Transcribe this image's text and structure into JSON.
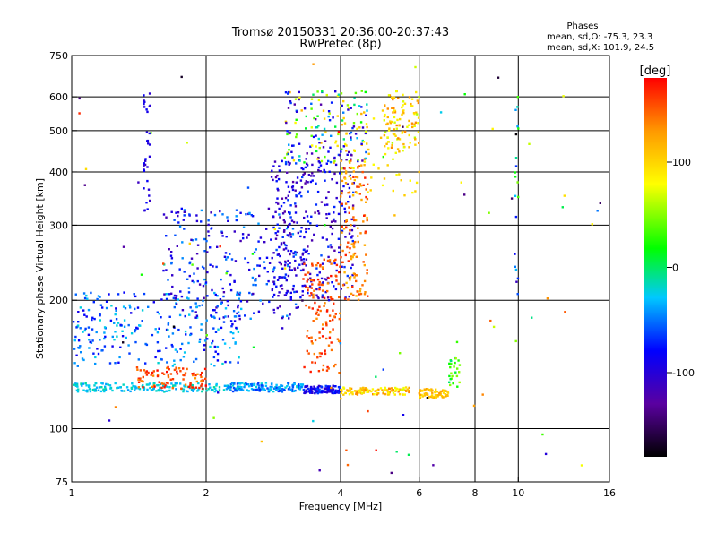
{
  "chart_data": {
    "type": "scatter",
    "title": "Tromsø 20150331 20:36:00-20:37:43",
    "subtitle": "RwPretec (8p)",
    "xlabel": "Frequency [MHz]",
    "ylabel": "Stationary phase Virtual Height [km]",
    "x_scale": "log",
    "y_scale": "log",
    "xlim": [
      1,
      16
    ],
    "ylim": [
      75,
      750
    ],
    "grid": true,
    "x_ticks": [
      1,
      2,
      4,
      6,
      8,
      10,
      16
    ],
    "y_ticks": [
      75,
      100,
      200,
      300,
      400,
      500,
      600,
      750
    ],
    "x_grid": [
      2,
      4,
      6,
      8,
      10
    ],
    "y_grid": [
      100,
      200,
      300,
      400,
      500,
      600
    ],
    "stats": {
      "heading": "Phases",
      "line_o": "mean, sd,O: -75.3, 23.3",
      "line_x": "mean, sd,X: 101.9, 24.5"
    },
    "colorbar": {
      "label": "[deg]",
      "min": -180,
      "max": 180,
      "ticks": [
        100,
        0,
        -100
      ],
      "colors": [
        "#000000",
        "#5a00a0",
        "#0000ff",
        "#00c8ff",
        "#00ff00",
        "#ffff00",
        "#ff9900",
        "#ff0000"
      ]
    },
    "clusters": [
      {
        "x": [
          1.0,
          2.2
        ],
        "y": [
          122,
          128
        ],
        "phase": [
          -10,
          -40
        ],
        "n": 160
      },
      {
        "x": [
          2.2,
          3.3
        ],
        "y": [
          122,
          128
        ],
        "phase": [
          -70,
          -20
        ],
        "n": 150
      },
      {
        "x": [
          3.3,
          4.0
        ],
        "y": [
          121,
          126
        ],
        "phase": [
          -110,
          -60
        ],
        "n": 110
      },
      {
        "x": [
          4.0,
          5.7
        ],
        "y": [
          120,
          125
        ],
        "phase": [
          70,
          140
        ],
        "n": 110
      },
      {
        "x": [
          6.0,
          7.0
        ],
        "y": [
          118,
          124
        ],
        "phase": [
          90,
          130
        ],
        "n": 70
      },
      {
        "x": [
          1.4,
          2.0
        ],
        "y": [
          124,
          140
        ],
        "phase": [
          130,
          180
        ],
        "n": 90
      },
      {
        "x": [
          1.0,
          2.4
        ],
        "y": [
          140,
          210
        ],
        "phase": [
          -90,
          -20
        ],
        "n": 260
      },
      {
        "x": [
          1.6,
          3.2
        ],
        "y": [
          180,
          330
        ],
        "phase": [
          -120,
          -40
        ],
        "n": 260
      },
      {
        "x": [
          2.8,
          4.3
        ],
        "y": [
          200,
          450
        ],
        "phase": [
          -130,
          -60
        ],
        "n": 330
      },
      {
        "x": [
          3.3,
          4.0
        ],
        "y": [
          135,
          250
        ],
        "phase": [
          130,
          175
        ],
        "n": 130
      },
      {
        "x": [
          4.0,
          4.6
        ],
        "y": [
          200,
          430
        ],
        "phase": [
          110,
          170
        ],
        "n": 130
      },
      {
        "x": [
          3.0,
          4.6
        ],
        "y": [
          420,
          620
        ],
        "phase": [
          -130,
          120
        ],
        "n": 150
      },
      {
        "x": [
          5.0,
          6.0
        ],
        "y": [
          450,
          620
        ],
        "phase": [
          60,
          140
        ],
        "n": 90
      },
      {
        "x": [
          4.0,
          6.0
        ],
        "y": [
          350,
          560
        ],
        "phase": [
          70,
          120
        ],
        "n": 70
      },
      {
        "x": [
          7.0,
          7.4
        ],
        "y": [
          124,
          150
        ],
        "phase": [
          -10,
          60
        ],
        "n": 25
      },
      {
        "x": [
          1.0,
          16.0
        ],
        "y": [
          78,
          740
        ],
        "phase": [
          -180,
          180
        ],
        "n": 90
      },
      {
        "x": [
          1.45,
          1.5
        ],
        "y": [
          320,
          620
        ],
        "phase": [
          -110,
          -80
        ],
        "n": 35
      },
      {
        "x": [
          9.8,
          10.0
        ],
        "y": [
          150,
          620
        ],
        "phase": [
          -120,
          60
        ],
        "n": 20
      }
    ]
  }
}
